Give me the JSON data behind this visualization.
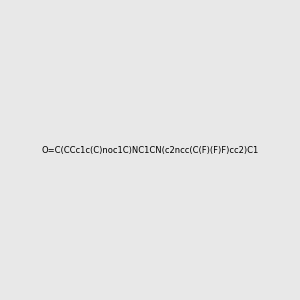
{
  "smiles": "O=C(CCc1c(C)noc1C)NC1CN(c2ncc(C(F)(F)F)cc2)C1",
  "title": "",
  "bg_color": "#e8e8e8",
  "figsize": [
    3.0,
    3.0
  ],
  "dpi": 100
}
